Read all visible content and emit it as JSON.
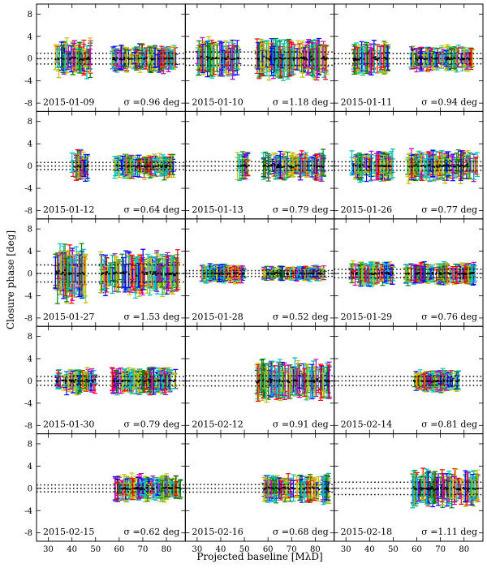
{
  "chart_data": {
    "type": "scatter",
    "xlabel": "Projected baseline [MλD]",
    "ylabel": "Closure phase [deg]",
    "xlim": [
      25,
      88
    ],
    "ylim": [
      -9.5,
      9.8
    ],
    "x_ticks": [
      30,
      40,
      50,
      60,
      70,
      80
    ],
    "y_ticks": [
      -8,
      -4,
      0,
      4,
      8
    ],
    "colors": {
      "yellow": "#c0c000",
      "cyan": "#00bfbf",
      "red": "#ff0000",
      "green": "#008000",
      "blue": "#0000ff",
      "magenta": "#bf00bf",
      "black": "#000000"
    },
    "panels": [
      {
        "date": "2015-01-09",
        "sigma_label": "σ =0.96 deg",
        "sigma": 0.96,
        "clusters": [
          {
            "x": [
              33,
              48
            ],
            "spread": 3.0
          },
          {
            "x": [
              57,
              84
            ],
            "spread": 2.2
          }
        ]
      },
      {
        "date": "2015-01-10",
        "sigma_label": "σ =1.18 deg",
        "sigma": 1.18,
        "clusters": [
          {
            "x": [
              30,
              48
            ],
            "spread": 3.0
          },
          {
            "x": [
              55,
              85
            ],
            "spread": 3.2
          }
        ]
      },
      {
        "date": "2015-01-11",
        "sigma_label": "σ =0.94 deg",
        "sigma": 0.94,
        "clusters": [
          {
            "x": [
              33,
              48
            ],
            "spread": 2.8
          },
          {
            "x": [
              57,
              84
            ],
            "spread": 2.0
          }
        ]
      },
      {
        "date": "2015-01-12",
        "sigma_label": "σ =0.64 deg",
        "sigma": 0.64,
        "clusters": [
          {
            "x": [
              40,
              47
            ],
            "spread": 2.5
          },
          {
            "x": [
              58,
              83
            ],
            "spread": 2.0
          }
        ]
      },
      {
        "date": "2015-01-13",
        "sigma_label": "σ =0.79 deg",
        "sigma": 0.79,
        "clusters": [
          {
            "x": [
              47,
              52
            ],
            "spread": 2.4
          },
          {
            "x": [
              58,
              84
            ],
            "spread": 2.3
          }
        ]
      },
      {
        "date": "2015-01-26",
        "sigma_label": "σ =0.77 deg",
        "sigma": 0.77,
        "clusters": [
          {
            "x": [
              32,
              50
            ],
            "spread": 2.5
          },
          {
            "x": [
              56,
              86
            ],
            "spread": 2.5
          }
        ]
      },
      {
        "date": "2015-01-27",
        "sigma_label": "σ =1.53 deg",
        "sigma": 1.53,
        "clusters": [
          {
            "x": [
              33,
              46
            ],
            "spread": 4.5
          },
          {
            "x": [
              52,
              85
            ],
            "spread": 3.5
          }
        ]
      },
      {
        "date": "2015-01-28",
        "sigma_label": "σ =0.52 deg",
        "sigma": 0.52,
        "clusters": [
          {
            "x": [
              32,
              50
            ],
            "spread": 1.5
          },
          {
            "x": [
              58,
              84
            ],
            "spread": 1.2
          }
        ]
      },
      {
        "date": "2015-01-29",
        "sigma_label": "σ =0.76 deg",
        "sigma": 0.76,
        "clusters": [
          {
            "x": [
              32,
              50
            ],
            "spread": 2.0
          },
          {
            "x": [
              55,
              85
            ],
            "spread": 1.8
          }
        ]
      },
      {
        "date": "2015-01-30",
        "sigma_label": "σ =0.79 deg",
        "sigma": 0.79,
        "clusters": [
          {
            "x": [
              33,
              50
            ],
            "spread": 2.0
          },
          {
            "x": [
              57,
              84
            ],
            "spread": 2.2
          }
        ]
      },
      {
        "date": "2015-02-12",
        "sigma_label": "σ =0.91 deg",
        "sigma": 0.91,
        "clusters": [
          {
            "x": [
              55,
              86
            ],
            "spread": 3.2
          }
        ]
      },
      {
        "date": "2015-02-14",
        "sigma_label": "σ =0.81 deg",
        "sigma": 0.81,
        "clusters": [
          {
            "x": [
              58,
              78
            ],
            "spread": 1.8
          }
        ]
      },
      {
        "date": "2015-02-15",
        "sigma_label": "σ =0.62 deg",
        "sigma": 0.62,
        "clusters": [
          {
            "x": [
              58,
              86
            ],
            "spread": 2.2
          }
        ]
      },
      {
        "date": "2015-02-16",
        "sigma_label": "σ =0.68 deg",
        "sigma": 0.68,
        "clusters": [
          {
            "x": [
              58,
              86
            ],
            "spread": 2.3
          }
        ]
      },
      {
        "date": "2015-02-18",
        "sigma_label": "σ =1.11 deg",
        "sigma": 1.11,
        "clusters": [
          {
            "x": [
              58,
              86
            ],
            "spread": 3.0
          }
        ]
      }
    ]
  }
}
